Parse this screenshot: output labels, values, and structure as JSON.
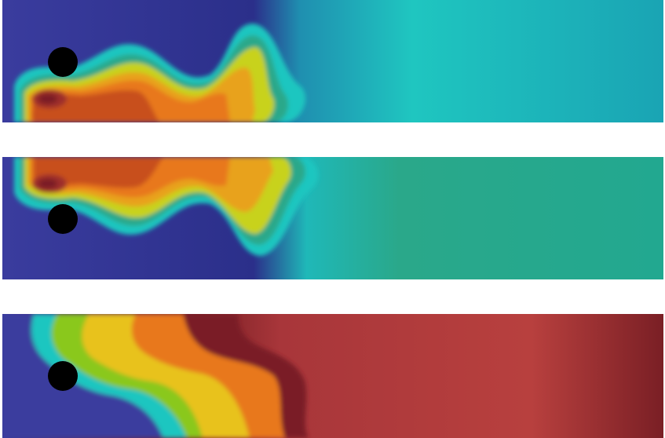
{
  "figure": {
    "panels": [
      {
        "id": "panel-1",
        "obstacle": "circle-cylinder",
        "field": "scalar-contour",
        "colormap": "jet",
        "background_level": "mid-cyan"
      },
      {
        "id": "panel-2",
        "obstacle": "circle-cylinder",
        "field": "scalar-contour",
        "colormap": "jet",
        "background_level": "mid-green"
      },
      {
        "id": "panel-3",
        "obstacle": "circle-cylinder",
        "field": "scalar-contour",
        "colormap": "jet",
        "background_level": "high-red"
      }
    ],
    "colors": {
      "low": "#3b3b9e",
      "cyan": "#1fc8c0",
      "green": "#2aa88a",
      "yellow": "#e8d21a",
      "orange": "#e8781a",
      "red": "#b8402e",
      "dark_red": "#7a1f25",
      "obstacle": "#000000"
    }
  }
}
